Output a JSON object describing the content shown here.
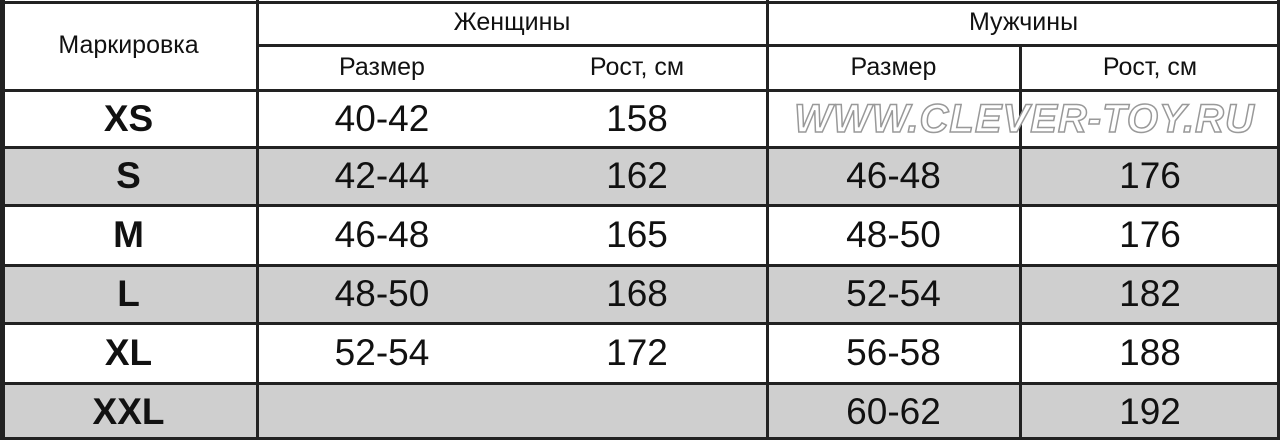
{
  "table": {
    "header": {
      "marking": "Маркировка",
      "women": "Женщины",
      "men": "Мужчины",
      "size": "Размер",
      "height": "Рост, см"
    },
    "rows": [
      {
        "mark": "XS",
        "women_size": "40-42",
        "women_height": "158",
        "men_size": "",
        "men_height": "",
        "shaded": false
      },
      {
        "mark": "S",
        "women_size": "42-44",
        "women_height": "162",
        "men_size": "46-48",
        "men_height": "176",
        "shaded": true
      },
      {
        "mark": "M",
        "women_size": "46-48",
        "women_height": "165",
        "men_size": "48-50",
        "men_height": "176",
        "shaded": false
      },
      {
        "mark": "L",
        "women_size": "48-50",
        "women_height": "168",
        "men_size": "52-54",
        "men_height": "182",
        "shaded": true
      },
      {
        "mark": "XL",
        "women_size": "52-54",
        "women_height": "172",
        "men_size": "56-58",
        "men_height": "188",
        "shaded": false
      },
      {
        "mark": "XXL",
        "women_size": "",
        "women_height": "",
        "men_size": "60-62",
        "men_height": "192",
        "shaded": true
      }
    ]
  },
  "watermark": "WWW.CLEVER-TOY.RU",
  "colors": {
    "shade": "#cfcfcf",
    "lines": "#222222"
  }
}
